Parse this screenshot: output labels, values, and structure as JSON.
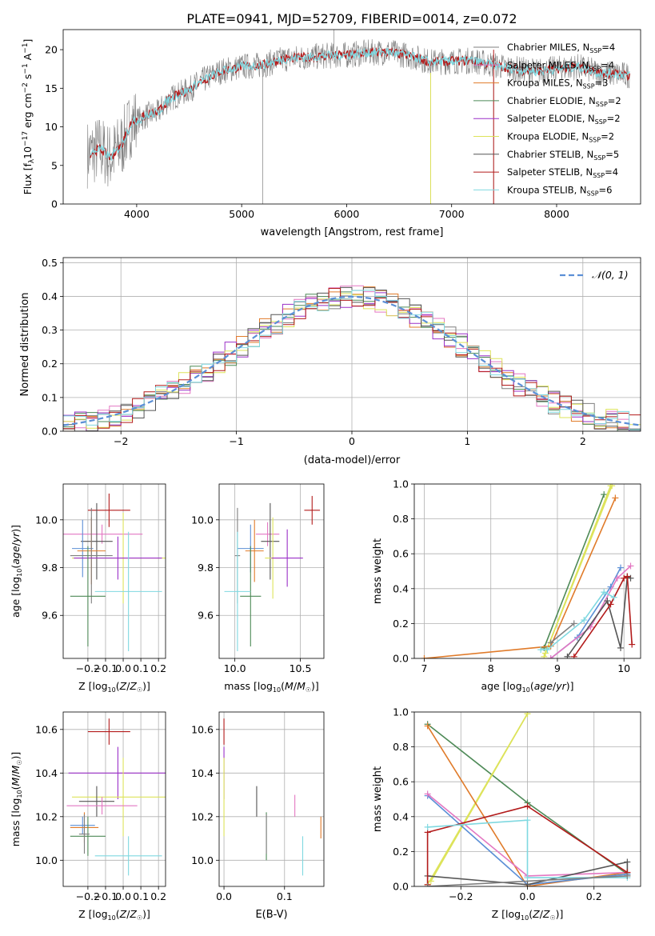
{
  "figure_title": "PLATE=0941, MJD=52709, FIBERID=0014, z=0.072",
  "colors": {
    "chabrier_miles": "#7f7f7f",
    "salpeter_miles": "#e377c2",
    "kroupa_miles": "#e07b2a",
    "chabrier_elodie": "#4e8a57",
    "salpeter_elodie": "#9b30c8",
    "kroupa_elodie": "#dde35a",
    "chabrier_stelib": "#555555",
    "salpeter_stelib": "#b31b1b",
    "kroupa_stelib": "#7fd8e0",
    "age_model": "#5b8fd6"
  },
  "chart_data": [
    {
      "id": "spectrum",
      "type": "line",
      "xlabel": "wavelength [Angstrom, rest frame]",
      "ylabel": "Flux [f_λ 10^-17 erg cm^-2 s^-1 A^-1]",
      "xlim": [
        3300,
        8800
      ],
      "ylim": [
        0,
        22.6
      ],
      "xticks": [
        4000,
        5000,
        6000,
        7000,
        8000
      ],
      "yticks": [
        0,
        5,
        10,
        15,
        20
      ],
      "legend_position": "right",
      "spikes": [
        {
          "x": 5200,
          "y": 0
        },
        {
          "x": 5880,
          "y": 23
        },
        {
          "x": 6800,
          "y": 0
        },
        {
          "x": 7400,
          "y": 0
        }
      ],
      "continuum": {
        "x": [
          3550,
          3650,
          3750,
          3850,
          3950,
          4000,
          4100,
          4200,
          4300,
          4400,
          4500,
          4600,
          4800,
          5000,
          5200,
          5400,
          5600,
          5800,
          6000,
          6200,
          6400,
          6600,
          6800,
          7000,
          7200,
          7400,
          7600,
          7800,
          8000,
          8200,
          8400,
          8600,
          8800
        ],
        "y": [
          6.5,
          7.2,
          6.0,
          7.5,
          10.5,
          10.8,
          11.5,
          11.8,
          13.5,
          14.2,
          14.8,
          15.8,
          17.2,
          17.8,
          18.0,
          18.8,
          19.0,
          19.2,
          19.3,
          19.6,
          19.7,
          19.2,
          18.4,
          18.5,
          18.6,
          18.0,
          17.5,
          17.2,
          17.5,
          17.8,
          17.0,
          16.8,
          16.5
        ]
      },
      "series": [
        {
          "legend": "Chabrier MILES, N",
          "sub": "SSP",
          "suffix": "=4",
          "color_key": "chabrier_miles"
        },
        {
          "legend": "Salpeter MILES, N",
          "sub": "SSP",
          "suffix": "=4",
          "color_key": "salpeter_miles"
        },
        {
          "legend": "Kroupa MILES, N",
          "sub": "SSP",
          "suffix": "=3",
          "color_key": "kroupa_miles"
        },
        {
          "legend": "Chabrier ELODIE, N",
          "sub": "SSP",
          "suffix": "=2",
          "color_key": "chabrier_elodie"
        },
        {
          "legend": "Salpeter ELODIE, N",
          "sub": "SSP",
          "suffix": "=2",
          "color_key": "salpeter_elodie"
        },
        {
          "legend": "Kroupa ELODIE, N",
          "sub": "SSP",
          "suffix": "=2",
          "color_key": "kroupa_elodie"
        },
        {
          "legend": "Chabrier STELIB, N",
          "sub": "SSP",
          "suffix": "=5",
          "color_key": "chabrier_stelib"
        },
        {
          "legend": "Salpeter STELIB, N",
          "sub": "SSP",
          "suffix": "=4",
          "color_key": "salpeter_stelib"
        },
        {
          "legend": "Kroupa STELIB, N",
          "sub": "SSP",
          "suffix": "=6",
          "color_key": "kroupa_stelib"
        }
      ]
    },
    {
      "id": "residuals",
      "type": "line",
      "xlabel": "(data-model)/error",
      "ylabel": "Normed distribution",
      "xlim": [
        -2.5,
        2.5
      ],
      "ylim": [
        0,
        0.515
      ],
      "xticks": [
        -2,
        -1,
        0,
        1,
        2
      ],
      "yticks": [
        0.0,
        0.1,
        0.2,
        0.3,
        0.4,
        0.5
      ],
      "grid": true,
      "legend_position": "top-right",
      "gaussian_label": "𝒩(0, 1)",
      "bin_width": 0.1,
      "bin_start": -2.5,
      "histogram_colors": [
        "chabrier_miles",
        "salpeter_miles",
        "kroupa_miles",
        "chabrier_elodie",
        "salpeter_elodie",
        "kroupa_elodie",
        "chabrier_stelib",
        "salpeter_stelib",
        "kroupa_stelib"
      ]
    },
    {
      "id": "z_vs_age",
      "type": "scatter",
      "xlabel": "Z [log10(Z/Z☉)]",
      "ylabel": "age [log10(age/yr)]",
      "xlim": [
        -0.34,
        0.24
      ],
      "ylim": [
        9.42,
        10.15
      ],
      "xticks": [
        -0.2,
        -0.1,
        0.0,
        0.1,
        0.2
      ],
      "yticks": [
        9.6,
        9.8,
        10.0
      ],
      "grid": true,
      "points": [
        {
          "color_key": "salpeter_stelib",
          "x": -0.08,
          "xerr": 0.12,
          "y": 10.04,
          "yerr": 0.07
        },
        {
          "color_key": "salpeter_miles",
          "x": -0.12,
          "xerr": 0.23,
          "y": 9.94,
          "yerr": 0.04
        },
        {
          "color_key": "chabrier_stelib",
          "x": -0.15,
          "xerr": 0.09,
          "y": 9.91,
          "yerr": 0.16
        },
        {
          "color_key": "age_model",
          "x": -0.23,
          "xerr": 0.06,
          "y": 9.88,
          "yerr": 0.12
        },
        {
          "color_key": "kroupa_miles",
          "x": -0.18,
          "xerr": 0.08,
          "y": 9.87,
          "yerr": 0.14
        },
        {
          "color_key": "kroupa_elodie",
          "x": 0.0,
          "xerr": 0.29,
          "y": 9.84,
          "yerr": 0.19
        },
        {
          "color_key": "chabrier_miles",
          "x": -0.18,
          "xerr": 0.12,
          "y": 9.85,
          "yerr": 0.2
        },
        {
          "color_key": "salpeter_elodie",
          "x": -0.03,
          "xerr": 0.25,
          "y": 9.84,
          "yerr": 0.09
        },
        {
          "color_key": "chabrier_elodie",
          "x": -0.2,
          "xerr": 0.1,
          "y": 9.68,
          "yerr": 0.21
        },
        {
          "color_key": "kroupa_stelib",
          "x": 0.03,
          "xerr": 0.19,
          "y": 9.7,
          "yerr": 0.25
        }
      ]
    },
    {
      "id": "mass_vs_age",
      "type": "scatter",
      "xlabel": "mass [log10(M/M☉)]",
      "ylabel": "",
      "xlim": [
        9.88,
        10.68
      ],
      "ylim": [
        9.42,
        10.15
      ],
      "xticks": [
        10.0,
        10.5
      ],
      "yticks": [
        9.6,
        9.8,
        10.0
      ],
      "grid": true,
      "points": [
        {
          "color_key": "salpeter_stelib",
          "x": 10.59,
          "xerr": 0.06,
          "y": 10.04,
          "yerr": 0.06
        },
        {
          "color_key": "salpeter_miles",
          "x": 10.25,
          "xerr": 0.09,
          "y": 9.94,
          "yerr": 0.05
        },
        {
          "color_key": "chabrier_stelib",
          "x": 10.27,
          "xerr": 0.07,
          "y": 9.91,
          "yerr": 0.16
        },
        {
          "color_key": "age_model",
          "x": 10.12,
          "xerr": 0.1,
          "y": 9.88,
          "yerr": 0.1
        },
        {
          "color_key": "kroupa_miles",
          "x": 10.15,
          "xerr": 0.07,
          "y": 9.87,
          "yerr": 0.13
        },
        {
          "color_key": "kroupa_elodie",
          "x": 10.29,
          "xerr": 0.06,
          "y": 9.84,
          "yerr": 0.17
        },
        {
          "color_key": "chabrier_miles",
          "x": 10.02,
          "xerr": 0.02,
          "y": 9.85,
          "yerr": 0.2
        },
        {
          "color_key": "salpeter_elodie",
          "x": 10.4,
          "xerr": 0.12,
          "y": 9.84,
          "yerr": 0.12
        },
        {
          "color_key": "chabrier_elodie",
          "x": 10.12,
          "xerr": 0.08,
          "y": 9.68,
          "yerr": 0.21
        },
        {
          "color_key": "kroupa_stelib",
          "x": 10.02,
          "xerr": 0.1,
          "y": 9.7,
          "yerr": 0.25
        }
      ]
    },
    {
      "id": "age_vs_weight",
      "type": "line",
      "xlabel": "age [log10(age/yr)]",
      "ylabel": "mass weight",
      "xlim": [
        6.85,
        10.25
      ],
      "ylim": [
        0,
        1.0
      ],
      "xticks": [
        7,
        8,
        9,
        10
      ],
      "yticks": [
        0.0,
        0.2,
        0.4,
        0.6,
        0.8,
        1.0
      ],
      "grid": true,
      "series": [
        {
          "color_key": "chabrier_elodie",
          "x": [
            8.8,
            9.7
          ],
          "y": [
            0.06,
            0.94
          ]
        },
        {
          "color_key": "kroupa_elodie",
          "x": [
            8.8,
            9.8
          ],
          "y": [
            0.01,
            0.99
          ]
        },
        {
          "color_key": "kroupa_elodie",
          "x": [
            8.82,
            9.82
          ],
          "y": [
            0.03,
            0.99
          ]
        },
        {
          "color_key": "kroupa_miles",
          "x": [
            7.0,
            8.9,
            9.87
          ],
          "y": [
            0.0,
            0.07,
            0.92
          ]
        },
        {
          "color_key": "age_model",
          "x": [
            8.9,
            9.3,
            9.8,
            9.95
          ],
          "y": [
            0.0,
            0.12,
            0.41,
            0.52
          ]
        },
        {
          "color_key": "salpeter_miles",
          "x": [
            8.9,
            9.5,
            9.9,
            10.1
          ],
          "y": [
            0.0,
            0.18,
            0.46,
            0.53
          ]
        },
        {
          "color_key": "chabrier_stelib",
          "x": [
            9.15,
            9.75,
            9.95,
            10.05,
            10.1
          ],
          "y": [
            0.01,
            0.33,
            0.06,
            0.47,
            0.46
          ]
        },
        {
          "color_key": "salpeter_stelib",
          "x": [
            9.25,
            9.8,
            10.0,
            10.05,
            10.12
          ],
          "y": [
            0.01,
            0.31,
            0.46,
            0.47,
            0.08
          ]
        },
        {
          "color_key": "kroupa_stelib",
          "x": [
            8.75,
            8.85,
            9.4,
            9.7,
            9.85
          ],
          "y": [
            0.05,
            0.05,
            0.22,
            0.38,
            0.35
          ]
        },
        {
          "color_key": "chabrier_miles",
          "x": [
            8.9,
            9.25
          ],
          "y": [
            0.09,
            0.2
          ]
        }
      ]
    },
    {
      "id": "z_vs_mass",
      "type": "scatter",
      "xlabel": "Z [log10(Z/Z☉)]",
      "ylabel": "mass [log10(M/M☉)]",
      "xlim": [
        -0.34,
        0.24
      ],
      "ylim": [
        9.88,
        10.68
      ],
      "xticks": [
        -0.2,
        -0.1,
        0.0,
        0.1,
        0.2
      ],
      "yticks": [
        10.0,
        10.2,
        10.4,
        10.6
      ],
      "grid": true,
      "points": [
        {
          "color_key": "salpeter_stelib",
          "x": -0.08,
          "xerr": 0.12,
          "y": 10.59,
          "yerr": 0.06
        },
        {
          "color_key": "salpeter_elodie",
          "x": -0.03,
          "xerr": 0.28,
          "y": 10.4,
          "yerr": 0.12
        },
        {
          "color_key": "kroupa_elodie",
          "x": 0.0,
          "xerr": 0.29,
          "y": 10.29,
          "yerr": 0.18
        },
        {
          "color_key": "chabrier_stelib",
          "x": -0.15,
          "xerr": 0.1,
          "y": 10.27,
          "yerr": 0.07
        },
        {
          "color_key": "salpeter_miles",
          "x": -0.12,
          "xerr": 0.2,
          "y": 10.25,
          "yerr": 0.04
        },
        {
          "color_key": "age_model",
          "x": -0.23,
          "xerr": 0.07,
          "y": 10.16,
          "yerr": 0.04
        },
        {
          "color_key": "kroupa_miles",
          "x": -0.22,
          "xerr": 0.08,
          "y": 10.15,
          "yerr": 0.07
        },
        {
          "color_key": "chabrier_elodie",
          "x": -0.2,
          "xerr": 0.1,
          "y": 10.11,
          "yerr": 0.09
        },
        {
          "color_key": "chabrier_miles",
          "x": -0.22,
          "xerr": 0.03,
          "y": 10.12,
          "yerr": 0.09
        },
        {
          "color_key": "kroupa_stelib",
          "x": 0.03,
          "xerr": 0.19,
          "y": 10.02,
          "yerr": 0.09
        }
      ]
    },
    {
      "id": "ebv_vs_mass",
      "type": "scatter",
      "xlabel": "E(B-V)",
      "ylabel": "",
      "xlim": [
        -0.008,
        0.165
      ],
      "ylim": [
        9.88,
        10.68
      ],
      "xticks": [
        0.0,
        0.1
      ],
      "yticks": [
        10.0,
        10.2,
        10.4,
        10.6
      ],
      "grid": true,
      "points": [
        {
          "color_key": "salpeter_stelib",
          "x": 0.0,
          "xerr": 0,
          "y": 10.59,
          "yerr": 0.06
        },
        {
          "color_key": "salpeter_elodie",
          "x": 0.0,
          "xerr": 0,
          "y": 10.4,
          "yerr": 0.12
        },
        {
          "color_key": "kroupa_elodie",
          "x": 0.0,
          "xerr": 0,
          "y": 10.29,
          "yerr": 0.18
        },
        {
          "color_key": "chabrier_stelib",
          "x": 0.054,
          "xerr": 0,
          "y": 10.27,
          "yerr": 0.07
        },
        {
          "color_key": "salpeter_miles",
          "x": 0.117,
          "xerr": 0,
          "y": 10.25,
          "yerr": 0.05
        },
        {
          "color_key": "chabrier_elodie",
          "x": 0.07,
          "xerr": 0,
          "y": 10.11,
          "yerr": 0.11
        },
        {
          "color_key": "kroupa_miles",
          "x": 0.16,
          "xerr": 0,
          "y": 10.15,
          "yerr": 0.05
        },
        {
          "color_key": "chabrier_miles",
          "x": 0.07,
          "xerr": 0,
          "y": 10.12,
          "yerr": 0.09
        },
        {
          "color_key": "kroupa_stelib",
          "x": 0.13,
          "xerr": 0,
          "y": 10.02,
          "yerr": 0.09
        }
      ]
    },
    {
      "id": "z_vs_weight",
      "type": "line",
      "xlabel": "Z [log10(Z/Z☉)]",
      "ylabel": "mass weight",
      "xlim": [
        -0.34,
        0.34
      ],
      "ylim": [
        0,
        1.0
      ],
      "xticks": [
        -0.2,
        0.0,
        0.2
      ],
      "yticks": [
        0.0,
        0.2,
        0.4,
        0.6,
        0.8,
        1.0
      ],
      "grid": true,
      "series": [
        {
          "color_key": "chabrier_elodie",
          "x": [
            -0.3,
            0.0,
            0.3
          ],
          "y": [
            0.93,
            0.48,
            0.07
          ]
        },
        {
          "color_key": "kroupa_elodie",
          "x": [
            -0.3,
            0.0
          ],
          "y": [
            0.01,
            0.99
          ]
        },
        {
          "color_key": "kroupa_elodie",
          "x": [
            -0.29,
            0.0
          ],
          "y": [
            0.03,
            0.99
          ]
        },
        {
          "color_key": "kroupa_miles",
          "x": [
            -0.3,
            0.0,
            0.3
          ],
          "y": [
            0.92,
            0.0,
            0.08
          ]
        },
        {
          "color_key": "age_model",
          "x": [
            -0.3,
            0.0,
            0.3
          ],
          "y": [
            0.52,
            0.01,
            0.07
          ]
        },
        {
          "color_key": "salpeter_miles",
          "x": [
            -0.3,
            0.0,
            0.3
          ],
          "y": [
            0.53,
            0.06,
            0.08
          ]
        },
        {
          "color_key": "chabrier_stelib",
          "x": [
            -0.3,
            0.0,
            0.3,
            0.3
          ],
          "y": [
            0.06,
            0.01,
            0.14,
            0.06
          ]
        },
        {
          "color_key": "salpeter_stelib",
          "x": [
            -0.3,
            -0.3,
            0.0,
            0.3
          ],
          "y": [
            0.01,
            0.31,
            0.46,
            0.08
          ]
        },
        {
          "color_key": "kroupa_stelib",
          "x": [
            -0.3,
            0.0,
            0.0,
            0.3
          ],
          "y": [
            0.34,
            0.38,
            0.05,
            0.05
          ]
        },
        {
          "color_key": "chabrier_miles",
          "x": [
            -0.3,
            0.3
          ],
          "y": [
            0.0,
            0.06
          ]
        }
      ]
    }
  ]
}
